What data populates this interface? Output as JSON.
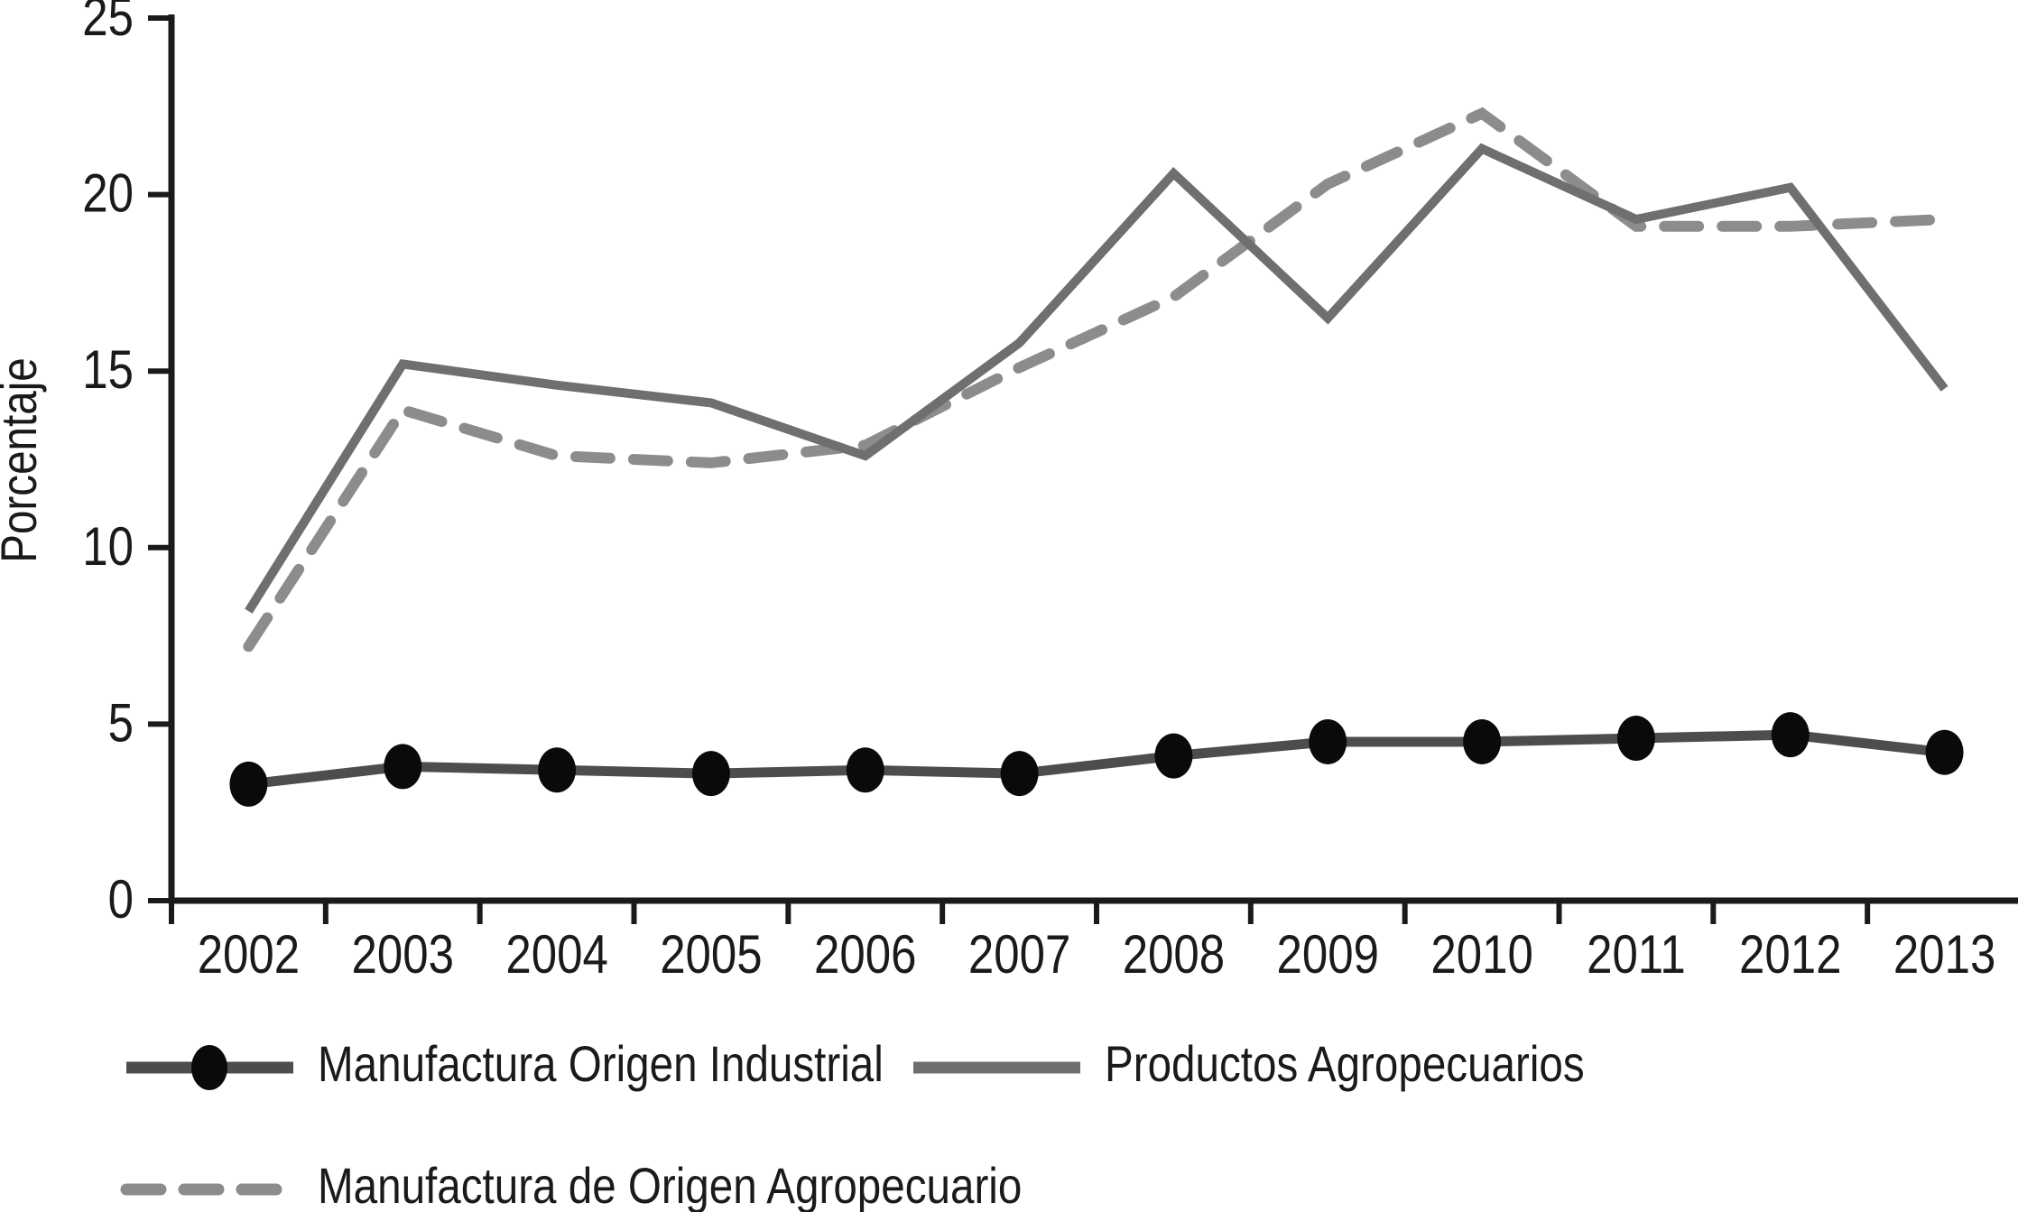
{
  "figure": {
    "background": "#ffffff",
    "text_color": "#1a1a1a",
    "axis_color": "#1a1a1a"
  },
  "chart_data": {
    "type": "line",
    "title": "",
    "xlabel": "",
    "ylabel": "Porcentaje",
    "x": [
      "2002",
      "2003",
      "2004",
      "2005",
      "2006",
      "2007",
      "2008",
      "2009",
      "2010",
      "2011",
      "2012",
      "2013"
    ],
    "ylim": [
      0,
      25
    ],
    "yticks": [
      0,
      5,
      10,
      15,
      20,
      25
    ],
    "grid": false,
    "legend_position": "bottom-left, two rows",
    "series": [
      {
        "name": "Manufactura Origen Industrial",
        "style": "solid",
        "marker": "filled-circle",
        "line_color": "#4d4d4d",
        "marker_color": "#0a0a0a",
        "values": [
          3.3,
          3.8,
          3.7,
          3.6,
          3.7,
          3.6,
          4.1,
          4.5,
          4.5,
          4.6,
          4.7,
          4.2
        ]
      },
      {
        "name": "Productos Agropecuarios",
        "style": "solid",
        "marker": "none",
        "line_color": "#6f6f6f",
        "marker_color": null,
        "values": [
          8.2,
          15.2,
          14.6,
          14.1,
          12.6,
          15.8,
          20.6,
          16.5,
          21.3,
          19.3,
          20.2,
          14.5
        ]
      },
      {
        "name": "Manufactura de Origen Agropecuario",
        "style": "dashed",
        "marker": "none",
        "line_color": "#8c8c8c",
        "marker_color": null,
        "values": [
          7.2,
          13.9,
          12.6,
          12.4,
          12.9,
          15.1,
          17.1,
          20.3,
          22.3,
          19.1,
          19.1,
          19.3
        ]
      }
    ]
  }
}
